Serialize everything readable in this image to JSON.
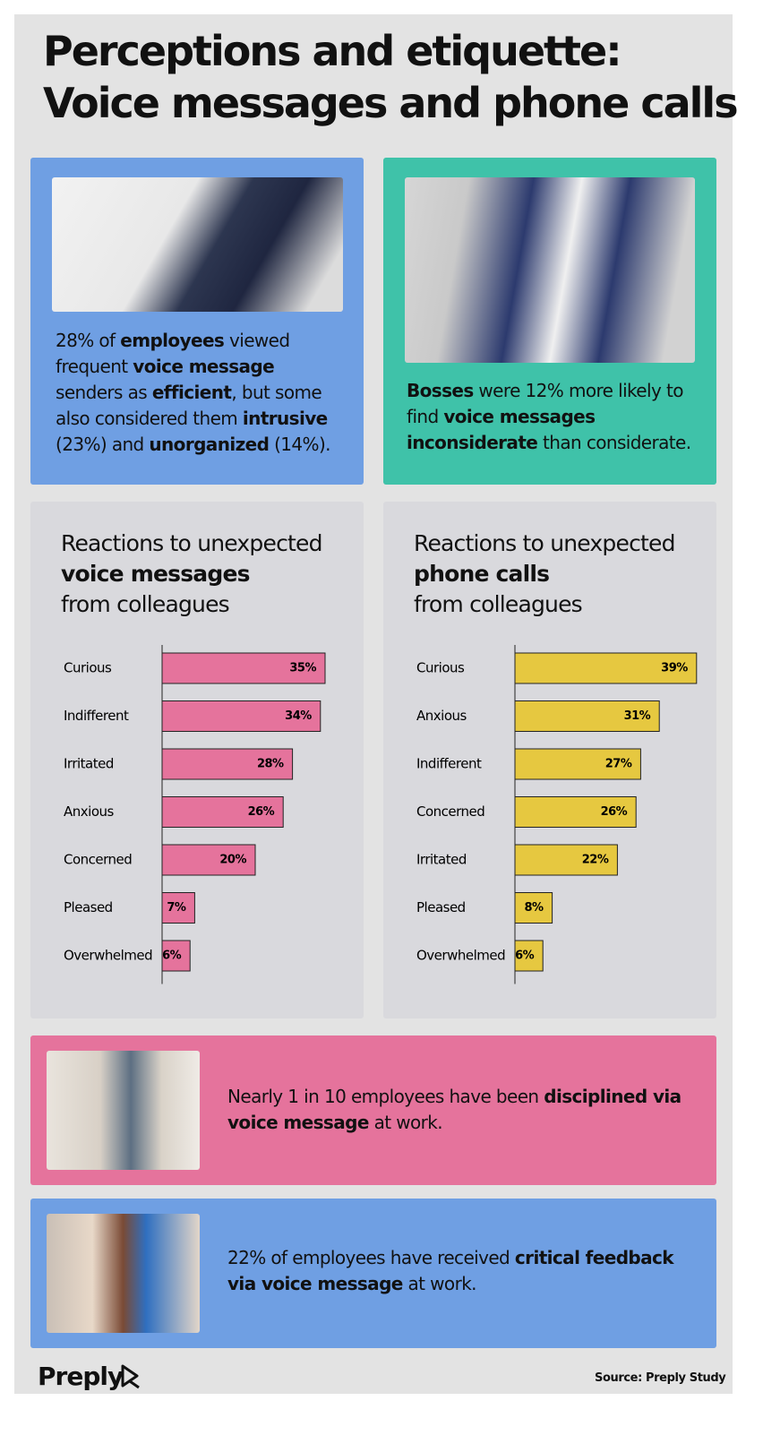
{
  "header": {
    "title_line1": "Perceptions and etiquette:",
    "title_line2": "Voice messages and phone calls"
  },
  "cards": [
    {
      "color": "#6f9fe3",
      "segments": [
        {
          "text": "28% of ",
          "bold": false
        },
        {
          "text": "employees",
          "bold": true
        },
        {
          "text": " viewed frequent ",
          "bold": false
        },
        {
          "text": "voice message",
          "bold": true
        },
        {
          "text": " senders as ",
          "bold": false
        },
        {
          "text": "efficient",
          "bold": true
        },
        {
          "text": ", but some also considered them ",
          "bold": false
        },
        {
          "text": "intrusive",
          "bold": true
        },
        {
          "text": " (23%) and ",
          "bold": false
        },
        {
          "text": "unorganized",
          "bold": true
        },
        {
          "text": " (14%).",
          "bold": false
        }
      ]
    },
    {
      "color": "#3fc2a9",
      "segments": [
        {
          "text": "Bosses",
          "bold": true
        },
        {
          "text": " were 12% more likely to find ",
          "bold": false
        },
        {
          "text": "voice messages inconsiderate",
          "bold": true
        },
        {
          "text": " than considerate.",
          "bold": false
        }
      ]
    },
    {
      "color": "#e5739c",
      "segments": [
        {
          "text": "Nearly 1 in 10 employees have been ",
          "bold": false
        },
        {
          "text": "disciplined via voice message",
          "bold": true
        },
        {
          "text": " at work.",
          "bold": false
        }
      ]
    },
    {
      "color": "#6f9fe3",
      "segments": [
        {
          "text": "22% of employees have received ",
          "bold": false
        },
        {
          "text": "critical feedback via voice message",
          "bold": true
        },
        {
          "text": " at work.",
          "bold": false
        }
      ]
    }
  ],
  "chart_data": [
    {
      "type": "bar",
      "title": "Reactions to unexpected",
      "title_bold": "voice messages",
      "subtitle": "from colleagues",
      "categories": [
        "Curious",
        "Indifferent",
        "Irritated",
        "Anxious",
        "Concerned",
        "Pleased",
        "Overwhelmed"
      ],
      "values": [
        35,
        34,
        28,
        26,
        20,
        7,
        6
      ],
      "value_labels": [
        "35%",
        "34%",
        "28%",
        "26%",
        "20%",
        "7%",
        "6%"
      ],
      "color": "#e5739c",
      "xlim": [
        0,
        40
      ]
    },
    {
      "type": "bar",
      "title": "Reactions to unexpected",
      "title_bold": "phone calls",
      "subtitle": "from colleagues",
      "categories": [
        "Curious",
        "Anxious",
        "Indifferent",
        "Concerned",
        "Irritated",
        "Pleased",
        "Overwhelmed"
      ],
      "values": [
        39,
        31,
        27,
        26,
        22,
        8,
        6
      ],
      "value_labels": [
        "39%",
        "31%",
        "27%",
        "26%",
        "22%",
        "8%",
        "6%"
      ],
      "color": "#e6c840",
      "xlim": [
        0,
        40
      ]
    }
  ],
  "footer": {
    "brand": "Preply",
    "source": "Source: Preply Study"
  }
}
